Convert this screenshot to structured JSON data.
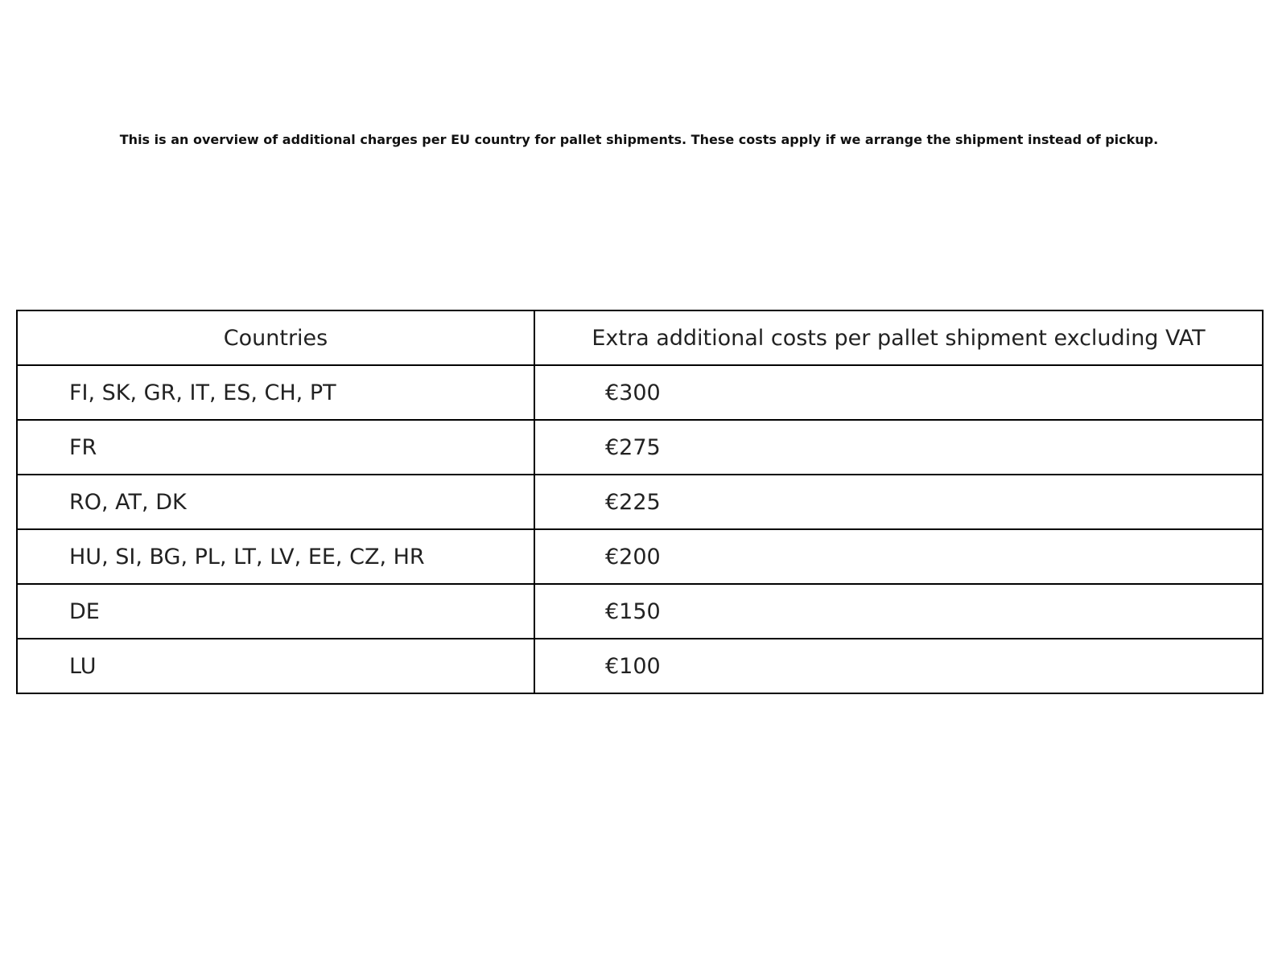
{
  "intro_text": "This is an overview of additional charges per EU country for pallet shipments. These costs apply if we arrange the shipment instead of pickup.",
  "table": {
    "headers": [
      "Countries",
      "Extra additional costs per pallet shipment excluding VAT"
    ],
    "rows": [
      [
        "FI, SK, GR, IT, ES, CH, PT",
        "€300"
      ],
      [
        "FR",
        "€275"
      ],
      [
        "RO, AT, DK",
        "€225"
      ],
      [
        "HU, SI, BG, PL, LT, LV, EE, CZ, HR",
        "€200"
      ],
      [
        "DE",
        "€150"
      ],
      [
        "LU",
        "€100"
      ]
    ]
  }
}
